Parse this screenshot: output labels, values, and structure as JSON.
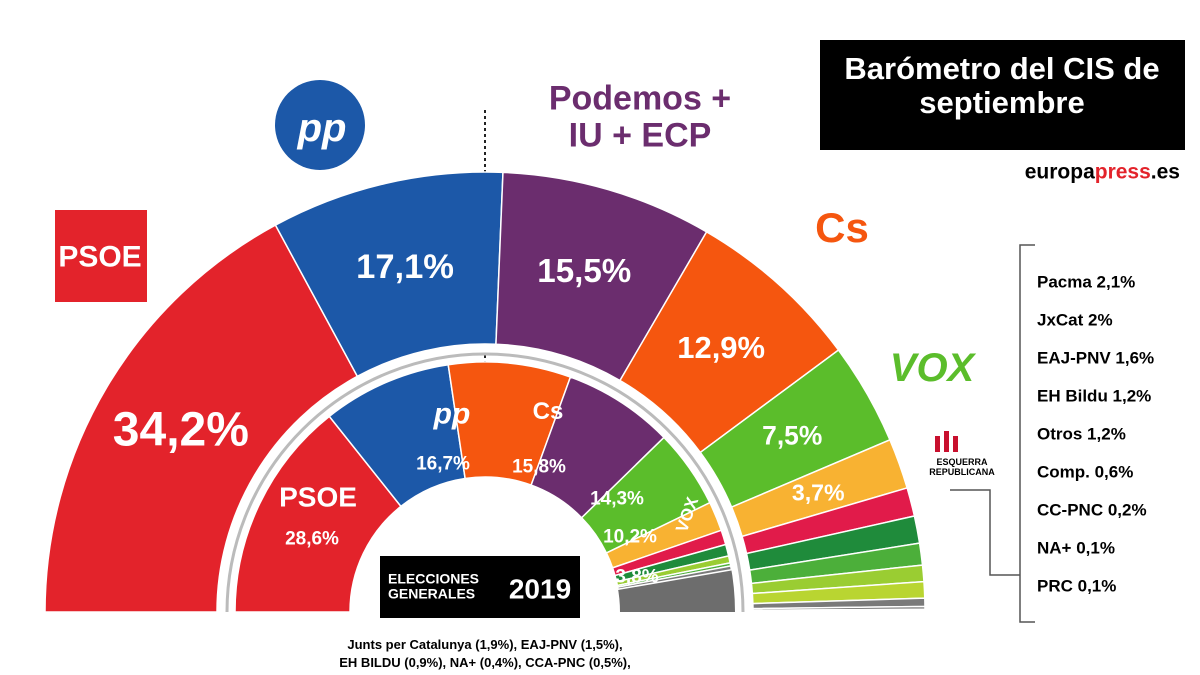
{
  "title": "Barómetro del CIS de septiembre",
  "source": [
    "europa",
    "press",
    ".es"
  ],
  "chart_data": [
    {
      "type": "semi-donut",
      "ylim": [
        0,
        100
      ],
      "categories": [
        "PSOE",
        "pp",
        "Podemos + IU + ECP",
        "Cs",
        "VOX",
        "ESQUERRA REPUBLICANA",
        "Pacma 2,1%",
        "JxCat 2%",
        "EAJ-PNV 1,6%",
        "EH Bildu 1,2%",
        "Otros 1,2%",
        "Comp. 0,6%",
        "CC-PNC 0,2%",
        "NA+ 0,1%",
        "PRC 0,1%"
      ],
      "values": [
        34.2,
        17.1,
        15.5,
        12.9,
        7.5,
        3.7,
        2.1,
        2,
        1.6,
        1.2,
        1.2,
        0.6,
        0.2,
        0.1,
        0.1
      ],
      "value_labels": [
        "34,2%",
        "17,1%",
        "15,5%",
        "12,9%",
        "7,5%",
        "3,7%",
        null,
        null,
        null,
        null,
        null,
        null,
        null,
        null,
        null
      ],
      "colors": [
        "#e3232b",
        "#1c58a8",
        "#6b2d6e",
        "#f5560f",
        "#5bbd2b",
        "#f8b232",
        "#e11b4a",
        "#1f8b3b",
        "#4caf3a",
        "#9acd32",
        "#b9d531",
        "#7a7a7a",
        "#6d6d6d",
        "#666666",
        "#5f5f5f"
      ]
    },
    {
      "type": "semi-donut",
      "ylim": [
        0,
        100
      ],
      "categories": [
        "PSOE",
        "pp",
        "Cs",
        null,
        "VOX",
        null,
        null,
        null,
        null,
        null,
        null
      ],
      "values": [
        28.6,
        16.7,
        15.8,
        14.3,
        10.2,
        3.8,
        1.9,
        1.5,
        0.9,
        0.4,
        0.5
      ],
      "value_labels": [
        "28,6%",
        "16,7%",
        "15,8%",
        "14,3%",
        "10,2%",
        "3,8%",
        null,
        null,
        null,
        null,
        null
      ],
      "colors": [
        "#e3232b",
        "#1c58a8",
        "#f5560f",
        "#6b2d6e",
        "#5bbd2b",
        "#f8b232",
        "#e11b4a",
        "#1f8b3b",
        "#9acd32",
        "#4caf3a",
        "#7a7a7a"
      ],
      "subtitle": "ELECCIONES GENERALES",
      "year": "2019"
    }
  ],
  "footnote": [
    "Junts per Catalunya (1,9%), EAJ-PNV (1,5%),",
    "EH BILDU (0,9%), NA+ (0,4%), CCA-PNC (0,5%),"
  ]
}
